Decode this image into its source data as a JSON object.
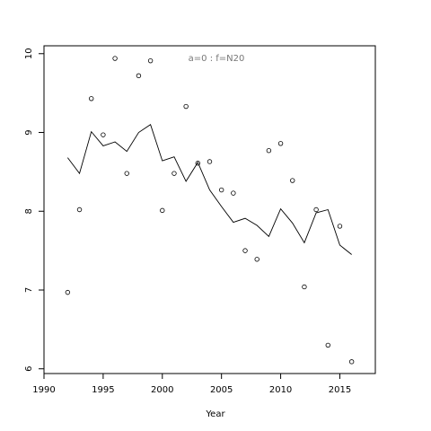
{
  "chart_data": {
    "type": "scatter",
    "xlabel": "Year",
    "annotation": "a=0  :  f=N20",
    "x": [
      1992,
      1993,
      1994,
      1995,
      1996,
      1997,
      1998,
      1999,
      2000,
      2001,
      2002,
      2003,
      2004,
      2005,
      2006,
      2007,
      2008,
      2009,
      2010,
      2011,
      2012,
      2013,
      2014,
      2015,
      2016
    ],
    "series": [
      {
        "style": "points",
        "color": "#000000",
        "values": [
          6.97,
          8.02,
          9.43,
          8.97,
          9.94,
          8.48,
          9.72,
          9.91,
          8.01,
          8.48,
          9.33,
          8.61,
          8.63,
          8.27,
          8.23,
          7.5,
          7.39,
          8.77,
          8.86,
          8.39,
          7.04,
          8.02,
          6.3,
          7.81,
          6.09
        ]
      },
      {
        "style": "line",
        "color": "#000000",
        "values": [
          8.68,
          8.48,
          9.01,
          8.83,
          8.88,
          8.76,
          9.0,
          9.1,
          8.64,
          8.69,
          8.38,
          8.62,
          8.27,
          8.06,
          7.86,
          7.91,
          7.82,
          7.68,
          8.03,
          7.85,
          7.6,
          7.98,
          8.02,
          7.57,
          7.45
        ]
      }
    ],
    "xlim": [
      1990,
      2018
    ],
    "ylim": [
      5.94,
      10.1
    ],
    "xticks": [
      1990,
      1995,
      2000,
      2005,
      2010,
      2015
    ],
    "yticks": [
      6,
      7,
      8,
      9,
      10
    ]
  }
}
